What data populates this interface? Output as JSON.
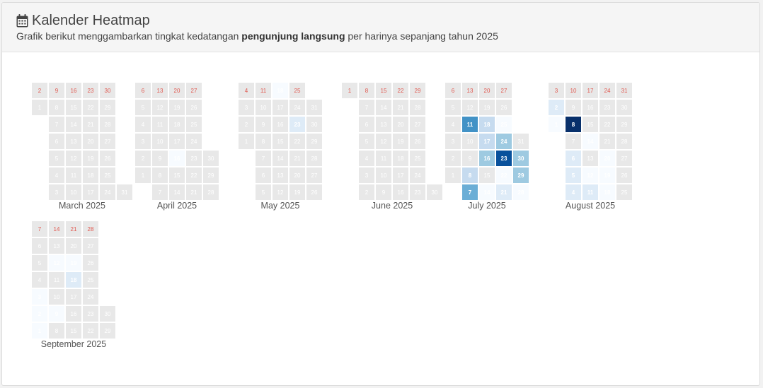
{
  "header": {
    "icon": "calendar-icon",
    "title": "Kalender Heatmap",
    "subtitle_prefix": "Grafik berikut menggambarkan tingkat kedatangan ",
    "subtitle_bold": "pengunjung langsung",
    "subtitle_suffix": " per harinya sepanjang tahun 2025"
  },
  "colors": {
    "empty": "#e8e8e8",
    "sunday_text": "#e0584f",
    "scale": [
      "#f7fbff",
      "#deebf7",
      "#c6dbef",
      "#9ecae1",
      "#6baed6",
      "#4292c6",
      "#2171b5",
      "#08519c",
      "#08306b"
    ]
  },
  "chart_data": {
    "type": "heatmap",
    "year": 2025,
    "levels": 8,
    "months": [
      {
        "label": "March 2025",
        "month": 3,
        "days": 31,
        "firstDow": 6,
        "values": {}
      },
      {
        "label": "April 2025",
        "month": 4,
        "days": 30,
        "firstDow": 2,
        "values": {
          "16": 0
        }
      },
      {
        "label": "May 2025",
        "month": 5,
        "days": 31,
        "firstDow": 4,
        "values": {
          "18": 0,
          "23": 1
        }
      },
      {
        "label": "June 2025",
        "month": 6,
        "days": 30,
        "firstDow": 0,
        "values": {}
      },
      {
        "label": "July 2025",
        "month": 7,
        "days": 31,
        "firstDow": 2,
        "values": {
          "7": 4,
          "8": 2,
          "11": 5,
          "14": 0,
          "16": 3,
          "17": 2,
          "18": 2,
          "21": 1,
          "22": 0,
          "23": 7,
          "24": 3,
          "25": 0,
          "28": 0,
          "29": 3,
          "30": 3
        }
      },
      {
        "label": "August 2025",
        "month": 8,
        "days": 31,
        "firstDow": 5,
        "values": {
          "1": 0,
          "2": 1,
          "4": 1,
          "5": 1,
          "6": 1,
          "8": 8,
          "11": 1,
          "12": 0,
          "14": 0,
          "18": 0,
          "19": 0,
          "20": 0
        }
      },
      {
        "label": "September 2025",
        "month": 9,
        "days": 30,
        "firstDow": 1,
        "values": {
          "1": 0,
          "2": 0,
          "3": 0,
          "9": 0,
          "12": 0,
          "18": 1,
          "19": 0
        }
      }
    ]
  }
}
